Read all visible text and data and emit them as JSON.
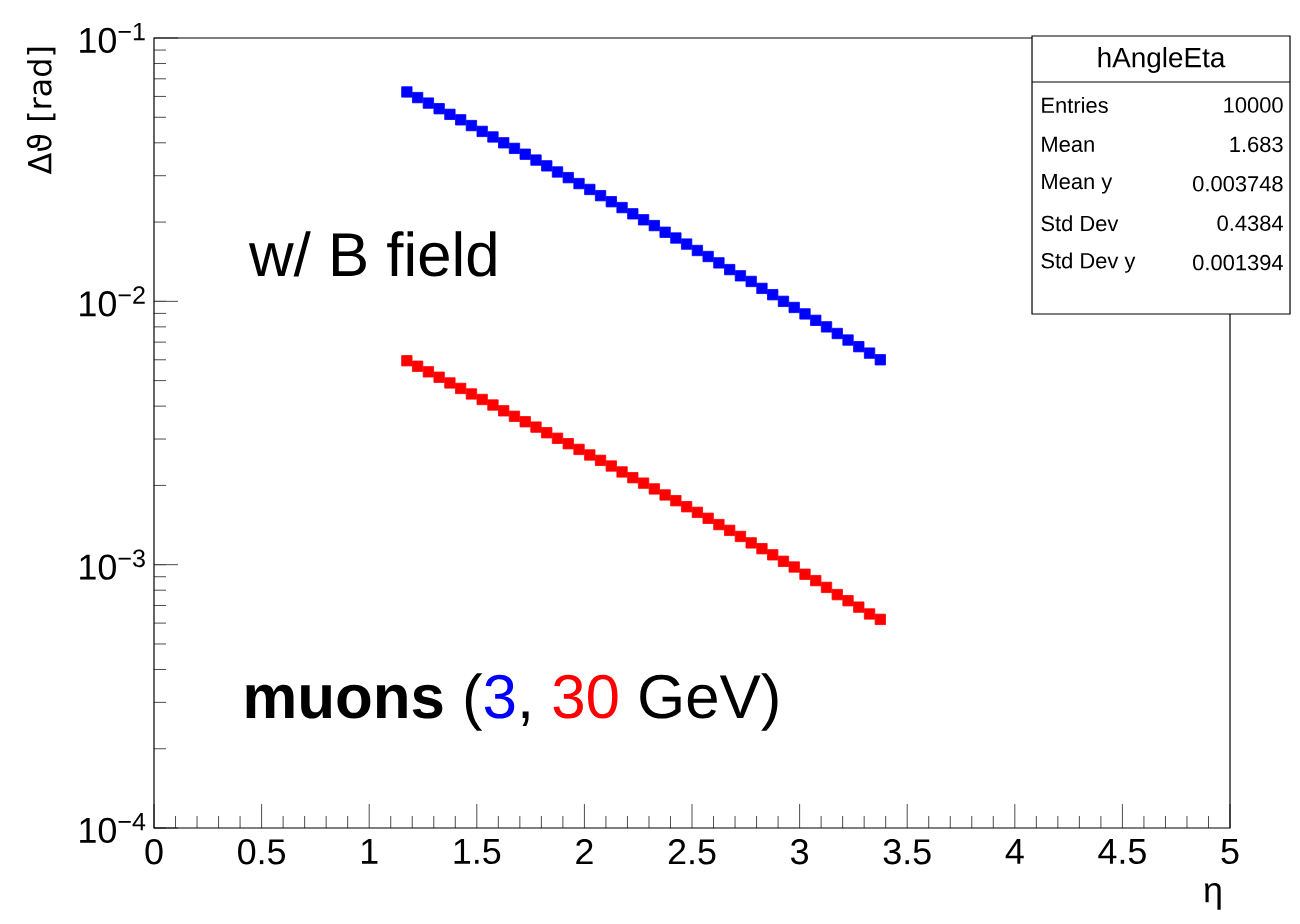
{
  "chart_data": {
    "type": "scatter",
    "xlabel": "η",
    "ylabel": "Δϑ [rad]",
    "xlim": [
      0,
      5
    ],
    "ylim": [
      0.0001,
      0.1
    ],
    "log": "y",
    "marker": "square",
    "grid": false,
    "xticks": [
      0,
      0.5,
      1,
      1.5,
      2,
      2.5,
      3,
      3.5,
      4,
      4.5,
      5
    ],
    "yticks": [
      {
        "value": 0.0001,
        "label": "10$^{−4}$"
      },
      {
        "value": 0.001,
        "label": "10$^{−3}$"
      },
      {
        "value": 0.01,
        "label": "10$^{−2}$"
      },
      {
        "value": 0.1,
        "label": "10$^{−1}$"
      }
    ],
    "x": [
      1.175,
      1.225,
      1.275,
      1.325,
      1.375,
      1.425,
      1.475,
      1.525,
      1.575,
      1.625,
      1.675,
      1.725,
      1.775,
      1.825,
      1.875,
      1.925,
      1.975,
      2.025,
      2.075,
      2.125,
      2.175,
      2.225,
      2.275,
      2.325,
      2.375,
      2.425,
      2.475,
      2.525,
      2.575,
      2.625,
      2.675,
      2.725,
      2.775,
      2.825,
      2.875,
      2.925,
      2.975,
      3.025,
      3.075,
      3.125,
      3.175,
      3.225,
      3.275,
      3.325,
      3.375
    ],
    "series": [
      {
        "color": "#0000ff",
        "values": [
          0.0624,
          0.0594,
          0.0566,
          0.0539,
          0.0513,
          0.0489,
          0.0465,
          0.0442,
          0.0421,
          0.04,
          0.0381,
          0.0362,
          0.0344,
          0.0327,
          0.031,
          0.0295,
          0.028,
          0.0266,
          0.0252,
          0.0239,
          0.0227,
          0.0215,
          0.0204,
          0.0194,
          0.0183,
          0.0174,
          0.0165,
          0.0156,
          0.0148,
          0.014,
          0.0132,
          0.0125,
          0.0119,
          0.0112,
          0.0106,
          0.01,
          0.00948,
          0.00896,
          0.00847,
          0.008,
          0.00755,
          0.00713,
          0.00673,
          0.00636,
          0.006
        ]
      },
      {
        "color": "#ff0000",
        "values": [
          0.00595,
          0.00567,
          0.0054,
          0.00515,
          0.0049,
          0.00467,
          0.00445,
          0.00424,
          0.00404,
          0.00384,
          0.00366,
          0.00349,
          0.00333,
          0.00317,
          0.00302,
          0.00288,
          0.00274,
          0.00261,
          0.00249,
          0.00237,
          0.00225,
          0.00214,
          0.00204,
          0.00194,
          0.00184,
          0.00175,
          0.00166,
          0.00158,
          0.0015,
          0.00142,
          0.00135,
          0.00128,
          0.00121,
          0.00115,
          0.00109,
          0.00103,
          0.00098,
          0.00092,
          0.00087,
          0.00082,
          0.00077,
          0.00073,
          0.00069,
          0.00065,
          0.00062
        ]
      }
    ],
    "annotations": [
      "w/ B field",
      "**muons** (",
      "3",
      ",",
      "30",
      "GeV)",
      "hAngleEta",
      "Entries",
      "10000",
      "Mean",
      "1.683",
      "Mean y",
      "0.003748",
      "Std Dev",
      "0.4384",
      "Std Dev y",
      "0.001394"
    ]
  }
}
